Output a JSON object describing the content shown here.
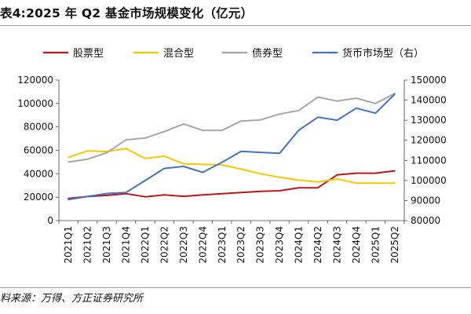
{
  "figure": {
    "title": "表4:2025 年 Q2 基金市场规模变化（亿元）",
    "source": "料来源：万得、方正证券研究所"
  },
  "chart_data": {
    "type": "line",
    "title": "表4:2025 年 Q2 基金市场规模变化（亿元）",
    "xlabel": "",
    "ylabel": "",
    "categories": [
      "2021Q1",
      "2021Q2",
      "2021Q3",
      "2021Q4",
      "2022Q1",
      "2022Q2",
      "2022Q3",
      "2022Q4",
      "2023Q1",
      "2023Q2",
      "2023Q3",
      "2023Q4",
      "2024Q1",
      "2024Q2",
      "2024Q3",
      "2024Q4",
      "2025Q1",
      "2025Q2"
    ],
    "ylim": [
      0,
      120000
    ],
    "yticks": [
      0,
      20000,
      40000,
      60000,
      80000,
      100000,
      120000
    ],
    "y2lim": [
      80000,
      150000
    ],
    "y2ticks": [
      80000,
      90000,
      100000,
      110000,
      120000,
      130000,
      140000,
      150000
    ],
    "grid": false,
    "legend_position": "top",
    "series": [
      {
        "name": "股票型",
        "color": "#c0141b",
        "axis": "left",
        "values": [
          19000,
          20500,
          21500,
          23000,
          20300,
          22000,
          20700,
          22000,
          23000,
          24000,
          25000,
          25500,
          28000,
          28000,
          39000,
          40500,
          40500,
          42500
        ]
      },
      {
        "name": "混合型",
        "color": "#f5c800",
        "axis": "left",
        "values": [
          54000,
          59500,
          59000,
          61500,
          53000,
          55000,
          48500,
          48000,
          47500,
          44000,
          40000,
          37000,
          34500,
          33000,
          35500,
          32000,
          32000,
          32000
        ]
      },
      {
        "name": "债券型",
        "color": "#a6a6a6",
        "axis": "left",
        "values": [
          50000,
          52500,
          58000,
          69000,
          70500,
          76000,
          82500,
          77000,
          77000,
          85000,
          86000,
          91000,
          94000,
          105500,
          102000,
          104500,
          100000,
          108500
        ]
      },
      {
        "name": "货币市场型（右）",
        "color": "#4472c4",
        "axis": "right",
        "values": [
          90500,
          92000,
          93500,
          94000,
          100000,
          106000,
          107000,
          104000,
          109000,
          114500,
          114000,
          113500,
          125000,
          131500,
          130000,
          136000,
          133500,
          143000
        ]
      }
    ]
  }
}
